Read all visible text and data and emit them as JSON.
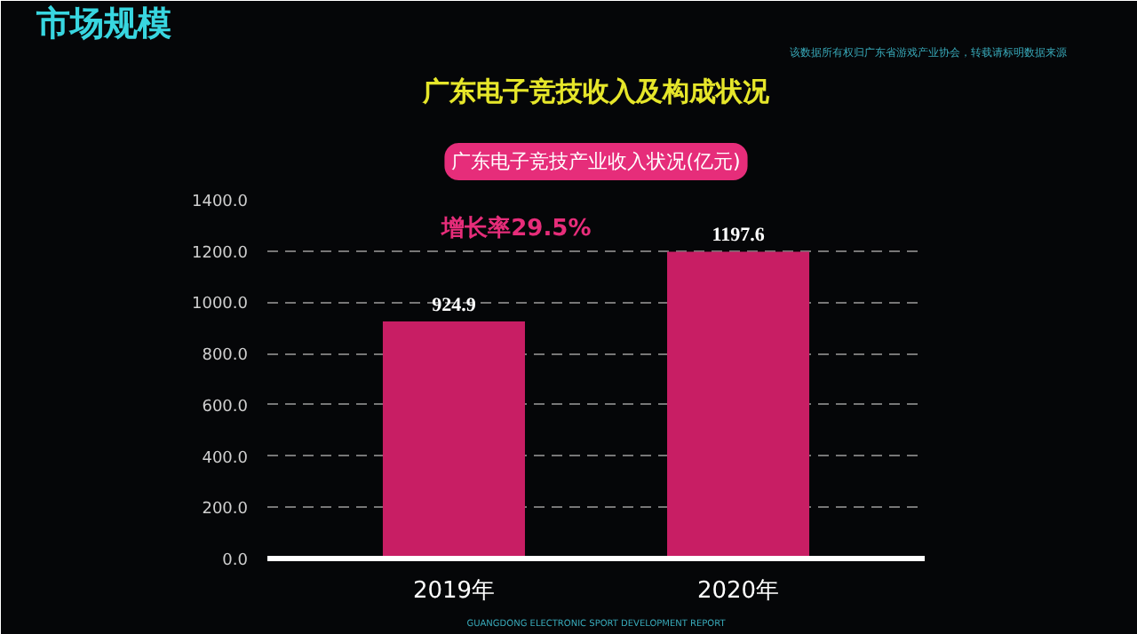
{
  "chart_data": {
    "type": "bar",
    "title": "广东电子竞技收入及构成状况",
    "subtitle": "广东电子竞技产业收入状况(亿元)",
    "categories": [
      "2019年",
      "2020年"
    ],
    "values": [
      924.9,
      1197.6
    ],
    "color": "#c81e64",
    "data_labels": true,
    "ylim": [
      0,
      1400
    ],
    "yticks": [
      {
        "value": 0,
        "label": "0.0"
      },
      {
        "value": 200,
        "label": "200.0"
      },
      {
        "value": 400,
        "label": "400.0"
      },
      {
        "value": 600,
        "label": "600.0"
      },
      {
        "value": 800,
        "label": "800.0"
      },
      {
        "value": 1000,
        "label": "1000.0"
      },
      {
        "value": 1200,
        "label": "1200.0"
      },
      {
        "value": 1400,
        "label": "1400.0"
      }
    ],
    "grid": "y",
    "annotations": [
      "市场规模",
      "该数据所有权归广东省游戏产业协会，转载请标明数据来源",
      "增长率29.5%",
      "GUANGDONG ELECTRONIC SPORT DEVELOPMENT REPORT"
    ]
  }
}
